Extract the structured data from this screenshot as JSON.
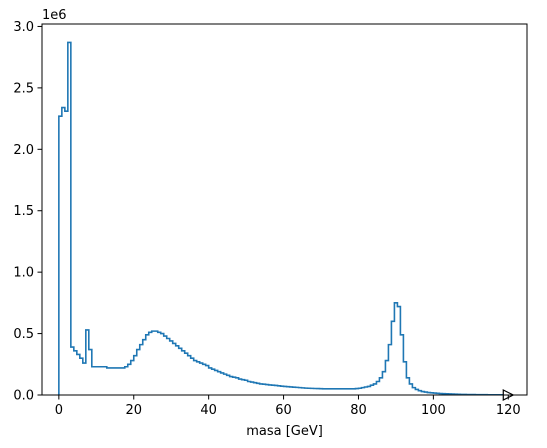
{
  "chart_data": {
    "type": "histogram",
    "title": "",
    "xlabel": "masa [GeV]",
    "ylabel": "",
    "y_offset_text": "1e6",
    "xlim": [
      -4.5,
      125
    ],
    "ylim": [
      0,
      3.02
    ],
    "x_ticks": [
      0,
      20,
      40,
      60,
      80,
      100,
      120
    ],
    "x_tick_labels": [
      "0",
      "20",
      "40",
      "60",
      "80",
      "100",
      "120"
    ],
    "y_ticks": [
      0.0,
      0.5,
      1.0,
      1.5,
      2.0,
      2.5,
      3.0
    ],
    "y_tick_labels": [
      "0.0",
      "0.5",
      "1.0",
      "1.5",
      "2.0",
      "2.5",
      "3.0"
    ],
    "grid": false,
    "legend": "none",
    "bin_width": 0.8,
    "bin_start": 0,
    "series": [
      {
        "color": "#1f77b4",
        "histtype": "step",
        "values": [
          2.27,
          2.34,
          2.31,
          2.87,
          0.39,
          0.36,
          0.33,
          0.3,
          0.26,
          0.53,
          0.37,
          0.23,
          0.23,
          0.23,
          0.23,
          0.23,
          0.22,
          0.22,
          0.22,
          0.22,
          0.22,
          0.22,
          0.23,
          0.25,
          0.28,
          0.32,
          0.37,
          0.41,
          0.45,
          0.49,
          0.51,
          0.52,
          0.52,
          0.51,
          0.5,
          0.48,
          0.46,
          0.44,
          0.42,
          0.4,
          0.38,
          0.36,
          0.34,
          0.32,
          0.3,
          0.28,
          0.27,
          0.26,
          0.25,
          0.24,
          0.22,
          0.21,
          0.2,
          0.19,
          0.18,
          0.17,
          0.16,
          0.15,
          0.145,
          0.14,
          0.13,
          0.125,
          0.12,
          0.11,
          0.105,
          0.1,
          0.095,
          0.09,
          0.088,
          0.085,
          0.082,
          0.08,
          0.078,
          0.075,
          0.072,
          0.07,
          0.068,
          0.066,
          0.064,
          0.062,
          0.06,
          0.058,
          0.056,
          0.055,
          0.054,
          0.053,
          0.052,
          0.051,
          0.05,
          0.05,
          0.05,
          0.05,
          0.05,
          0.05,
          0.05,
          0.05,
          0.05,
          0.05,
          0.05,
          0.052,
          0.055,
          0.06,
          0.065,
          0.07,
          0.08,
          0.09,
          0.11,
          0.14,
          0.19,
          0.28,
          0.41,
          0.6,
          0.75,
          0.72,
          0.49,
          0.27,
          0.14,
          0.09,
          0.06,
          0.045,
          0.035,
          0.028,
          0.024,
          0.02,
          0.018,
          0.016,
          0.014,
          0.012,
          0.011,
          0.01,
          0.009,
          0.008,
          0.007,
          0.006,
          0.005,
          0.005,
          0.004,
          0.004,
          0.004,
          0.003,
          0.003,
          0.003,
          0.003,
          0.002,
          0.002,
          0.002,
          0.002,
          0.002,
          0.002,
          0.001
        ]
      }
    ]
  }
}
